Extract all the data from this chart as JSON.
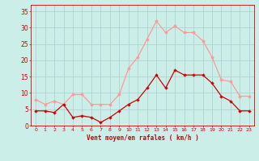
{
  "x": [
    0,
    1,
    2,
    3,
    4,
    5,
    6,
    7,
    8,
    9,
    10,
    11,
    12,
    13,
    14,
    15,
    16,
    17,
    18,
    19,
    20,
    21,
    22,
    23
  ],
  "mean_wind": [
    4.5,
    4.5,
    4.0,
    6.5,
    2.5,
    3.0,
    2.5,
    1.0,
    2.5,
    4.5,
    6.5,
    8.0,
    11.5,
    15.5,
    11.5,
    17.0,
    15.5,
    15.5,
    15.5,
    13.0,
    9.0,
    7.5,
    4.5,
    4.5
  ],
  "gust_wind": [
    8.0,
    6.5,
    7.5,
    6.5,
    9.5,
    9.5,
    6.5,
    6.5,
    6.5,
    9.5,
    17.5,
    21.0,
    26.5,
    32.0,
    28.5,
    30.5,
    28.5,
    28.5,
    26.0,
    21.0,
    14.0,
    13.5,
    9.0,
    9.0
  ],
  "mean_color": "#cc0000",
  "gust_color": "#ff9999",
  "bg_color": "#cceee8",
  "grid_color": "#aacccc",
  "xlabel": "Vent moyen/en rafales ( km/h )",
  "yticks": [
    0,
    5,
    10,
    15,
    20,
    25,
    30,
    35
  ],
  "xlim": [
    -0.5,
    23.5
  ],
  "ylim": [
    0,
    37
  ]
}
